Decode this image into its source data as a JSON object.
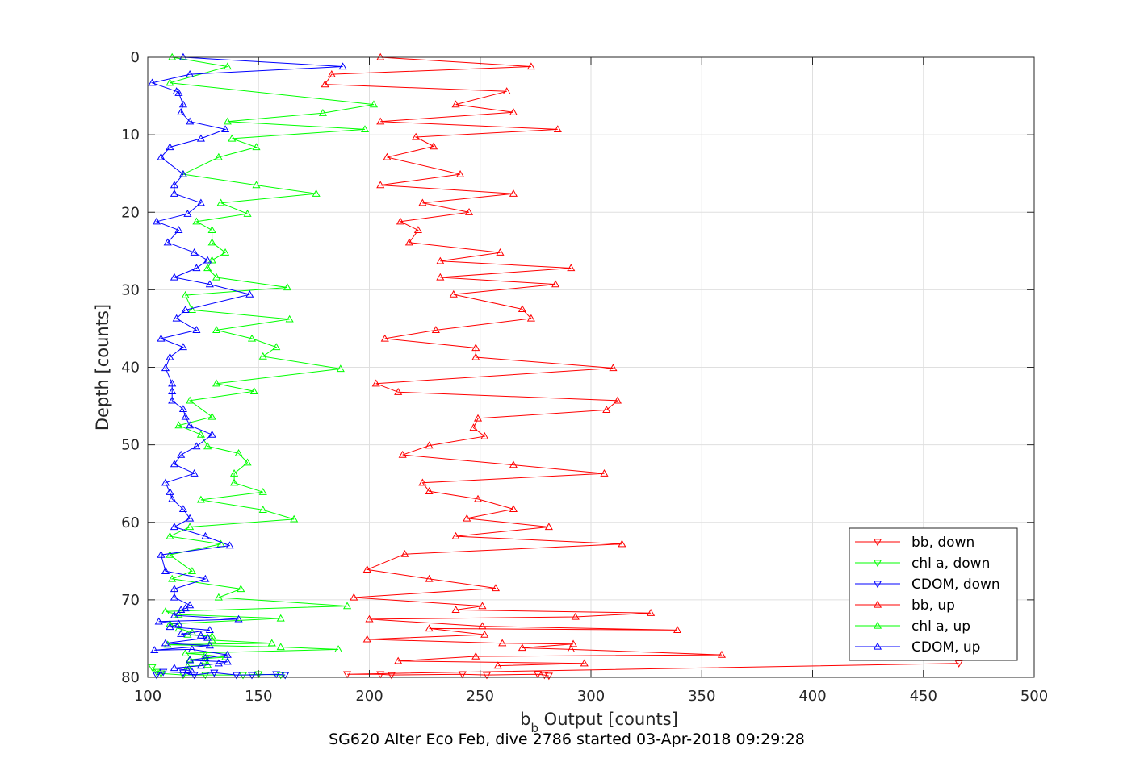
{
  "chart_data": {
    "type": "line",
    "title": "SG620 Alter Eco Feb, dive 2786 started 03-Apr-2018 09:29:28",
    "xlabel_main": "b",
    "xlabel_sub": "b",
    "xlabel_rest": " Output [counts]",
    "ylabel": "Depth [counts]",
    "xlim": [
      100,
      500
    ],
    "ylim": [
      0,
      80
    ],
    "y_reversed": true,
    "xticks": [
      100,
      150,
      200,
      250,
      300,
      350,
      400,
      450,
      500
    ],
    "yticks": [
      0,
      10,
      20,
      30,
      40,
      50,
      60,
      70,
      80
    ],
    "grid": true,
    "legend_position": "bottom-right",
    "series": [
      {
        "name": "bb, down",
        "color": "#ff0000",
        "marker": "down",
        "points": [
          [
            466,
            78.2
          ],
          [
            190,
            79.6
          ],
          [
            205,
            79.6
          ],
          [
            210,
            79.7
          ],
          [
            242,
            79.6
          ],
          [
            253,
            79.7
          ],
          [
            276,
            79.6
          ],
          [
            279,
            79.7
          ],
          [
            281,
            79.8
          ]
        ]
      },
      {
        "name": "chl a, down",
        "color": "#00ff00",
        "marker": "down",
        "points": [
          [
            102,
            78.7
          ],
          [
            104,
            79.3
          ],
          [
            106,
            79.5
          ],
          [
            116,
            79.7
          ],
          [
            126,
            79.7
          ],
          [
            143,
            79.7
          ],
          [
            150,
            79.6
          ],
          [
            160,
            79.7
          ],
          [
            162,
            79.7
          ]
        ]
      },
      {
        "name": "CDOM, down",
        "color": "#0000ff",
        "marker": "down",
        "points": [
          [
            104,
            79.7
          ],
          [
            107,
            79.3
          ],
          [
            116,
            79.4
          ],
          [
            121,
            79.7
          ],
          [
            130,
            79.4
          ],
          [
            140,
            79.7
          ],
          [
            147,
            79.7
          ],
          [
            158,
            79.6
          ],
          [
            162,
            79.7
          ]
        ]
      },
      {
        "name": "bb, up",
        "color": "#ff0000",
        "marker": "up",
        "points": [
          [
            205,
            0
          ],
          [
            273,
            1.2
          ],
          [
            183,
            2.2
          ],
          [
            180,
            3.5
          ],
          [
            262,
            4.4
          ],
          [
            239,
            6.1
          ],
          [
            265,
            7.1
          ],
          [
            205,
            8.3
          ],
          [
            285,
            9.3
          ],
          [
            221,
            10.3
          ],
          [
            229,
            11.5
          ],
          [
            208,
            12.9
          ],
          [
            241,
            15.1
          ],
          [
            205,
            16.5
          ],
          [
            265,
            17.6
          ],
          [
            224,
            18.8
          ],
          [
            245,
            20
          ],
          [
            214,
            21.2
          ],
          [
            222,
            22.3
          ],
          [
            218,
            23.9
          ],
          [
            259,
            25.2
          ],
          [
            232,
            26.3
          ],
          [
            291,
            27.2
          ],
          [
            232,
            28.4
          ],
          [
            284,
            29.3
          ],
          [
            238,
            30.6
          ],
          [
            269,
            32.5
          ],
          [
            273,
            33.7
          ],
          [
            230,
            35.2
          ],
          [
            207,
            36.3
          ],
          [
            248,
            37.5
          ],
          [
            248,
            38.7
          ],
          [
            310,
            40.1
          ],
          [
            203,
            42.1
          ],
          [
            213,
            43.2
          ],
          [
            312,
            44.3
          ],
          [
            307,
            45.5
          ],
          [
            249,
            46.6
          ],
          [
            247,
            47.8
          ],
          [
            252,
            48.9
          ],
          [
            227,
            50.1
          ],
          [
            215,
            51.3
          ],
          [
            265,
            52.6
          ],
          [
            306,
            53.7
          ],
          [
            224,
            54.9
          ],
          [
            227,
            56
          ],
          [
            249,
            57
          ],
          [
            265,
            58.3
          ],
          [
            244,
            59.5
          ],
          [
            281,
            60.6
          ],
          [
            239,
            61.8
          ],
          [
            314,
            62.8
          ],
          [
            216,
            64.1
          ],
          [
            199,
            66.1
          ],
          [
            227,
            67.3
          ],
          [
            257,
            68.5
          ],
          [
            193,
            69.7
          ],
          [
            251,
            70.8
          ],
          [
            239,
            71.3
          ],
          [
            327,
            71.7
          ],
          [
            293,
            72.2
          ],
          [
            200,
            72.5
          ],
          [
            251,
            73.4
          ],
          [
            339,
            73.9
          ],
          [
            227,
            73.7
          ],
          [
            252,
            74.5
          ],
          [
            199,
            75.1
          ],
          [
            260,
            75.6
          ],
          [
            292,
            75.7
          ],
          [
            269,
            76.2
          ],
          [
            291,
            76.4
          ],
          [
            359,
            77.1
          ],
          [
            248,
            77.3
          ],
          [
            213,
            77.9
          ],
          [
            297,
            78.2
          ],
          [
            258,
            78.5
          ]
        ]
      },
      {
        "name": "chl a, up",
        "color": "#00ff00",
        "marker": "up",
        "points": [
          [
            111,
            0
          ],
          [
            136,
            1.2
          ],
          [
            110,
            3.3
          ],
          [
            202,
            6.1
          ],
          [
            179,
            7.2
          ],
          [
            136,
            8.3
          ],
          [
            198,
            9.3
          ],
          [
            138,
            10.5
          ],
          [
            149,
            11.6
          ],
          [
            132,
            12.9
          ],
          [
            116,
            15.1
          ],
          [
            149,
            16.5
          ],
          [
            176,
            17.6
          ],
          [
            133,
            18.8
          ],
          [
            145,
            20.2
          ],
          [
            122,
            21.2
          ],
          [
            129,
            22.3
          ],
          [
            129,
            23.9
          ],
          [
            135,
            25.2
          ],
          [
            129,
            26.2
          ],
          [
            127,
            27.2
          ],
          [
            131,
            28.4
          ],
          [
            163,
            29.7
          ],
          [
            117,
            30.7
          ],
          [
            120,
            32.6
          ],
          [
            164,
            33.8
          ],
          [
            131,
            35.2
          ],
          [
            147,
            36.3
          ],
          [
            158,
            37.4
          ],
          [
            152,
            38.6
          ],
          [
            187,
            40.2
          ],
          [
            131,
            42.1
          ],
          [
            148,
            43.1
          ],
          [
            119,
            44.3
          ],
          [
            129,
            46.4
          ],
          [
            114,
            47.5
          ],
          [
            124,
            48.7
          ],
          [
            127,
            50.2
          ],
          [
            141,
            51.1
          ],
          [
            145,
            52.3
          ],
          [
            139,
            53.7
          ],
          [
            139,
            54.9
          ],
          [
            152,
            56.1
          ],
          [
            124,
            57.1
          ],
          [
            152,
            58.4
          ],
          [
            166,
            59.6
          ],
          [
            119,
            60.6
          ],
          [
            110,
            61.8
          ],
          [
            133,
            62.8
          ],
          [
            110,
            64.2
          ],
          [
            120,
            66.3
          ],
          [
            111,
            67.3
          ],
          [
            142,
            68.6
          ],
          [
            132,
            69.7
          ],
          [
            190,
            70.8
          ],
          [
            108,
            71.5
          ],
          [
            114,
            71.9
          ],
          [
            160,
            72.4
          ],
          [
            110,
            73.1
          ],
          [
            114,
            73.7
          ],
          [
            120,
            74.2
          ],
          [
            118,
            74.5
          ],
          [
            129,
            74.7
          ],
          [
            129,
            75.2
          ],
          [
            156,
            75.6
          ],
          [
            109,
            75.8
          ],
          [
            160,
            76.1
          ],
          [
            186,
            76.4
          ],
          [
            117,
            76.9
          ],
          [
            126,
            77.1
          ],
          [
            135,
            77.4
          ],
          [
            119,
            77.7
          ],
          [
            126,
            77.9
          ],
          [
            127,
            78.4
          ],
          [
            118,
            78.6
          ]
        ]
      },
      {
        "name": "CDOM, up",
        "color": "#0000ff",
        "marker": "up",
        "points": [
          [
            116,
            0
          ],
          [
            188,
            1.2
          ],
          [
            119,
            2.2
          ],
          [
            102,
            3.3
          ],
          [
            113,
            4.4
          ],
          [
            114,
            4.6
          ],
          [
            116,
            6.1
          ],
          [
            115,
            7.1
          ],
          [
            119,
            8.3
          ],
          [
            135,
            9.3
          ],
          [
            124,
            10.5
          ],
          [
            110,
            11.6
          ],
          [
            106,
            12.9
          ],
          [
            116,
            15.1
          ],
          [
            112,
            16.5
          ],
          [
            112,
            17.6
          ],
          [
            124,
            18.8
          ],
          [
            118,
            20.2
          ],
          [
            104,
            21.2
          ],
          [
            114,
            22.3
          ],
          [
            109,
            23.9
          ],
          [
            121,
            25.2
          ],
          [
            127,
            26.2
          ],
          [
            122,
            27.2
          ],
          [
            112,
            28.4
          ],
          [
            128,
            29.3
          ],
          [
            146,
            30.6
          ],
          [
            117,
            32.6
          ],
          [
            113,
            33.7
          ],
          [
            122,
            35.2
          ],
          [
            106,
            36.3
          ],
          [
            116,
            37.4
          ],
          [
            110,
            38.7
          ],
          [
            108,
            40.1
          ],
          [
            111,
            42.1
          ],
          [
            111,
            43.1
          ],
          [
            111,
            44.3
          ],
          [
            116,
            45.4
          ],
          [
            117,
            46.4
          ],
          [
            119,
            47.5
          ],
          [
            129,
            48.7
          ],
          [
            122,
            50.2
          ],
          [
            115,
            51.3
          ],
          [
            112,
            52.5
          ],
          [
            121,
            53.7
          ],
          [
            108,
            54.9
          ],
          [
            110,
            56.1
          ],
          [
            111,
            57
          ],
          [
            116,
            58.3
          ],
          [
            119,
            59.5
          ],
          [
            112,
            60.6
          ],
          [
            126,
            61.8
          ],
          [
            137,
            63
          ],
          [
            106,
            64.2
          ],
          [
            108,
            66.3
          ],
          [
            126,
            67.3
          ],
          [
            112,
            68.6
          ],
          [
            112,
            69.7
          ],
          [
            119,
            70.7
          ],
          [
            117,
            71.1
          ],
          [
            115,
            71.3
          ],
          [
            112,
            72
          ],
          [
            141,
            72.5
          ],
          [
            105,
            72.8
          ],
          [
            114,
            73.1
          ],
          [
            110,
            73.5
          ],
          [
            128,
            73.9
          ],
          [
            115,
            74.4
          ],
          [
            124,
            74.6
          ],
          [
            127,
            74.9
          ],
          [
            108,
            75.6
          ],
          [
            128,
            75.9
          ],
          [
            103,
            76.5
          ],
          [
            120,
            76.4
          ],
          [
            136,
            77.1
          ],
          [
            126,
            77.5
          ],
          [
            119,
            77.8
          ],
          [
            136,
            78
          ],
          [
            132,
            78.2
          ],
          [
            124,
            78.5
          ],
          [
            112,
            78.8
          ],
          [
            118,
            79.1
          ],
          [
            120,
            79.3
          ]
        ]
      }
    ]
  }
}
